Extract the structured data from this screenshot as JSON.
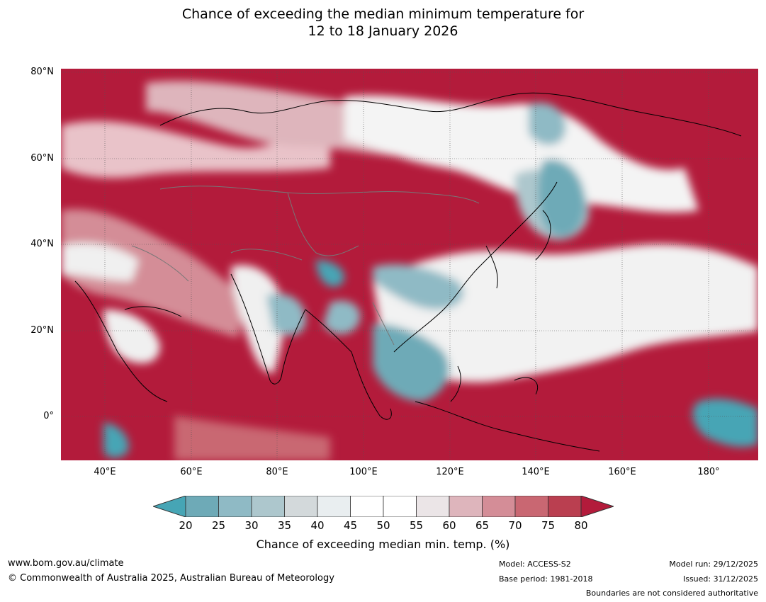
{
  "title_line1": "Chance of exceeding the median minimum temperature for",
  "title_line2": "12 to 18 January 2026",
  "map": {
    "lat_labels": [
      "80°N",
      "60°N",
      "40°N",
      "20°N",
      "0°"
    ],
    "lon_labels": [
      "40°E",
      "60°E",
      "80°E",
      "100°E",
      "120°E",
      "140°E",
      "160°E",
      "180°"
    ]
  },
  "colorbar": {
    "ticks": [
      "20",
      "25",
      "30",
      "35",
      "40",
      "45",
      "50",
      "55",
      "60",
      "65",
      "70",
      "75",
      "80"
    ],
    "colors": [
      "#46a5b5",
      "#6eaab7",
      "#8fbac5",
      "#adc7cd",
      "#d3d9db",
      "#e9eef0",
      "#ffffff",
      "#ffffff",
      "#ebe5e7",
      "#deb5bc",
      "#d48d97",
      "#c96772",
      "#ba3f50",
      "#b31b3b"
    ],
    "label": "Chance of exceeding median min. temp. (%)"
  },
  "footer": {
    "website": "www.bom.gov.au/climate",
    "copyright": "© Commonwealth of Australia 2025, Australian Bureau of Meteorology",
    "model": "Model: ACCESS-S2",
    "base_period": "Base period: 1981-2018",
    "model_run": "Model run: 29/12/2025",
    "issued": "Issued: 31/12/2025",
    "boundaries": "Boundaries are not considered authoritative"
  }
}
